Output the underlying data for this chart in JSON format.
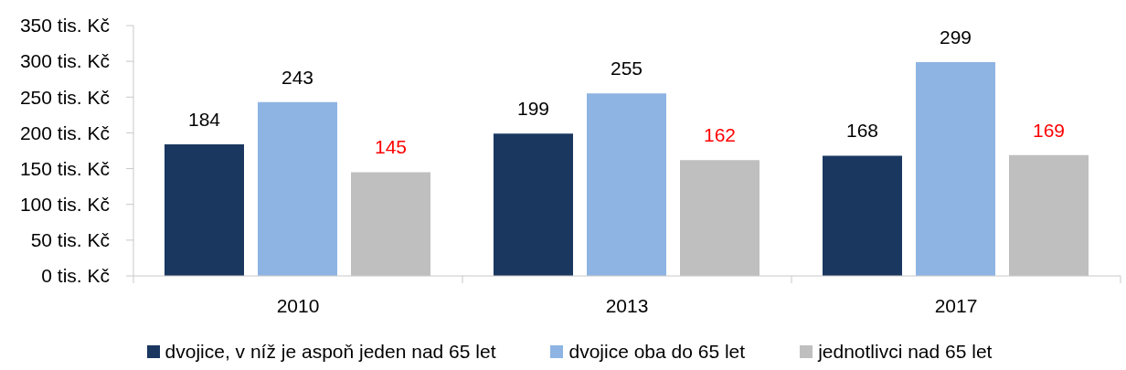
{
  "chart_data": {
    "type": "bar",
    "categories": [
      "2010",
      "2013",
      "2017"
    ],
    "series": [
      {
        "name": "dvojice, v níž je aspoň jeden nad 65 let",
        "color": "#1a3760",
        "values": [
          184,
          199,
          168
        ]
      },
      {
        "name": "dvojice oba do 65 let",
        "color": "#8eb4e3",
        "values": [
          243,
          255,
          299
        ]
      },
      {
        "name": "jednotlivci nad 65 let",
        "color": "#bfbfbf",
        "values": [
          145,
          162,
          169
        ]
      }
    ],
    "ylim": [
      0,
      350
    ],
    "yticks": [
      {
        "value": 0,
        "label": "0 tis. Kč"
      },
      {
        "value": 50,
        "label": "50 tis. Kč"
      },
      {
        "value": 100,
        "label": "100 tis. Kč"
      },
      {
        "value": 150,
        "label": "150 tis. Kč"
      },
      {
        "value": 200,
        "label": "200 tis. Kč"
      },
      {
        "value": 250,
        "label": "250 tis. Kč"
      },
      {
        "value": 300,
        "label": "300 tis. Kč"
      },
      {
        "value": 350,
        "label": "350 tis. Kč"
      }
    ],
    "data_labels": true,
    "legend": "bottom"
  }
}
